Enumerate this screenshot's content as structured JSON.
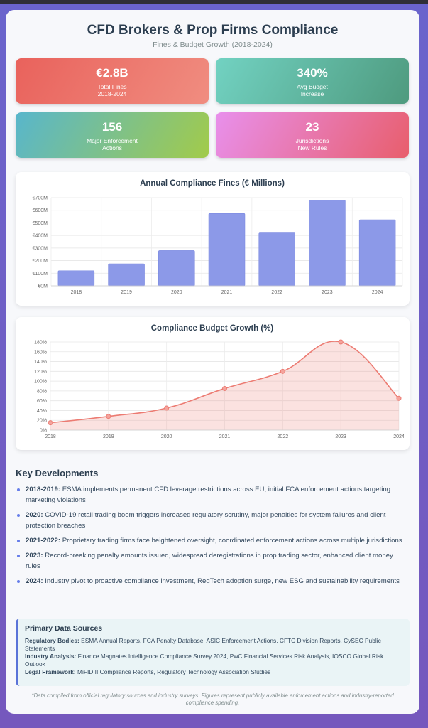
{
  "header": {
    "title": "CFD Brokers & Prop Firms Compliance",
    "subtitle": "Fines & Budget Growth (2018-2024)"
  },
  "stats": [
    {
      "value": "€2.8B",
      "label": [
        "Total Fines",
        "2018-2024"
      ]
    },
    {
      "value": "340%",
      "label": [
        "Avg Budget",
        "Increase"
      ]
    },
    {
      "value": "156",
      "label": [
        "Major Enforcement",
        "Actions"
      ]
    },
    {
      "value": "23",
      "label": [
        "Jurisdictions",
        "New Rules"
      ]
    }
  ],
  "chart_data": [
    {
      "type": "bar",
      "title": "Annual Compliance Fines (€ Millions)",
      "categories": [
        "2018",
        "2019",
        "2020",
        "2021",
        "2022",
        "2023",
        "2024"
      ],
      "values": [
        120,
        175,
        280,
        575,
        420,
        680,
        525
      ],
      "color": "#8c99e8",
      "ylim": [
        0,
        700
      ],
      "yticks": [
        {
          "value": 0,
          "label": "€0M"
        },
        {
          "value": 100,
          "label": "€100M"
        },
        {
          "value": 200,
          "label": "€200M"
        },
        {
          "value": 300,
          "label": "€300M"
        },
        {
          "value": 400,
          "label": "€400M"
        },
        {
          "value": 500,
          "label": "€500M"
        },
        {
          "value": 600,
          "label": "€600M"
        },
        {
          "value": 700,
          "label": "€700M"
        }
      ],
      "grid": true
    },
    {
      "type": "line",
      "title": "Compliance Budget Growth (%)",
      "categories": [
        "2018",
        "2019",
        "2020",
        "2021",
        "2022",
        "2023",
        "2024"
      ],
      "values": [
        15,
        28,
        45,
        85,
        120,
        180,
        65
      ],
      "color": "#ec7b72",
      "ylim": [
        0,
        180
      ],
      "yticks": [
        {
          "value": 0,
          "label": "0%"
        },
        {
          "value": 20,
          "label": "20%"
        },
        {
          "value": 40,
          "label": "40%"
        },
        {
          "value": 60,
          "label": "60%"
        },
        {
          "value": 80,
          "label": "80%"
        },
        {
          "value": 100,
          "label": "100%"
        },
        {
          "value": 120,
          "label": "120%"
        },
        {
          "value": 140,
          "label": "140%"
        },
        {
          "value": 160,
          "label": "160%"
        },
        {
          "value": 180,
          "label": "180%"
        }
      ],
      "grid": true
    }
  ],
  "developments": {
    "title": "Key Developments",
    "items": [
      {
        "period": "2018-2019:",
        "text": "ESMA implements permanent CFD leverage restrictions across EU, initial FCA enforcement actions targeting marketing violations"
      },
      {
        "period": "2020:",
        "text": "COVID-19 retail trading boom triggers increased regulatory scrutiny, major penalties for system failures and client protection breaches"
      },
      {
        "period": "2021-2022:",
        "text": "Proprietary trading firms face heightened oversight, coordinated enforcement actions across multiple jurisdictions"
      },
      {
        "period": "2023:",
        "text": "Record-breaking penalty amounts issued, widespread deregistrations in prop trading sector, enhanced client money rules"
      },
      {
        "period": "2024:",
        "text": "Industry pivot to proactive compliance investment, RegTech adoption surge, new ESG and sustainability requirements"
      }
    ]
  },
  "sources": {
    "title": "Primary Data Sources",
    "items": [
      {
        "label": "Regulatory Bodies:",
        "text": "ESMA Annual Reports, FCA Penalty Database, ASIC Enforcement Actions, CFTC Division Reports, CySEC Public Statements"
      },
      {
        "label": "Industry Analysis:",
        "text": "Finance Magnates Intelligence Compliance Survey 2024, PwC Financial Services Risk Analysis, IOSCO Global Risk Outlook"
      },
      {
        "label": "Legal Framework:",
        "text": "MiFID II Compliance Reports, Regulatory Technology Association Studies"
      }
    ]
  },
  "footnote": "*Data compiled from official regulatory sources and industry surveys. Figures represent publicly available enforcement actions and industry-reported compliance spending."
}
